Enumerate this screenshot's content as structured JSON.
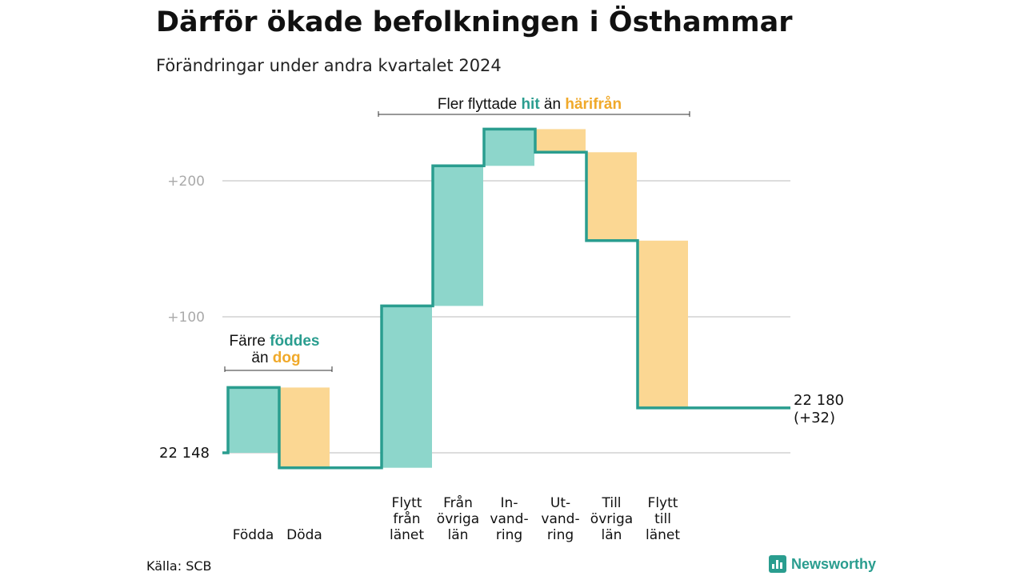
{
  "title": "Därför ökade befolkningen i Östhammar",
  "subtitle": "Förändringar under andra kvartalet 2024",
  "source": "Källa: SCB",
  "brand": "Newsworthy",
  "colors": {
    "increase": "#8dd6cb",
    "decrease": "#fbd793",
    "line": "#2a9d8f",
    "accent_in": "#2a9d8f",
    "accent_out": "#f0a92a",
    "grid": "#dddddd",
    "tick": "#aaaaaa"
  },
  "annotations": {
    "births_deaths": {
      "line1": "Färre",
      "line1_highlight": "föddes",
      "line2": "än",
      "line2_highlight": "dog"
    },
    "migration": {
      "prefix": "Fler flyttade",
      "highlight_in": "hit",
      "middle": "än",
      "highlight_out": "härifrån"
    }
  },
  "chart_data": {
    "type": "waterfall",
    "title": "Därför ökade befolkningen i Östhammar",
    "subtitle": "Förändringar under andra kvartalet 2024",
    "start_value": 22148,
    "start_label": "22  148",
    "end_value": 22180,
    "end_label_line1": "22 180",
    "end_label_line2": "(+32)",
    "yticks": [
      100,
      200
    ],
    "ytick_labels": [
      "+100",
      "+200"
    ],
    "ylim": [
      -11,
      237
    ],
    "grid": true,
    "steps": [
      {
        "label": [
          "Födda"
        ],
        "change": 48
      },
      {
        "label": [
          "Döda"
        ],
        "change": -59
      },
      {
        "label": [
          "Flytt",
          "från",
          "länet"
        ],
        "change": 119
      },
      {
        "label": [
          "Från",
          "övriga",
          "län"
        ],
        "change": 103
      },
      {
        "label": [
          "In-",
          "vand-",
          "ring"
        ],
        "change": 27
      },
      {
        "label": [
          "Ut-",
          "vand-",
          "ring"
        ],
        "change": -17
      },
      {
        "label": [
          "Till",
          "övriga",
          "län"
        ],
        "change": -65
      },
      {
        "label": [
          "Flytt",
          "till",
          "länet"
        ],
        "change": -123
      }
    ]
  }
}
